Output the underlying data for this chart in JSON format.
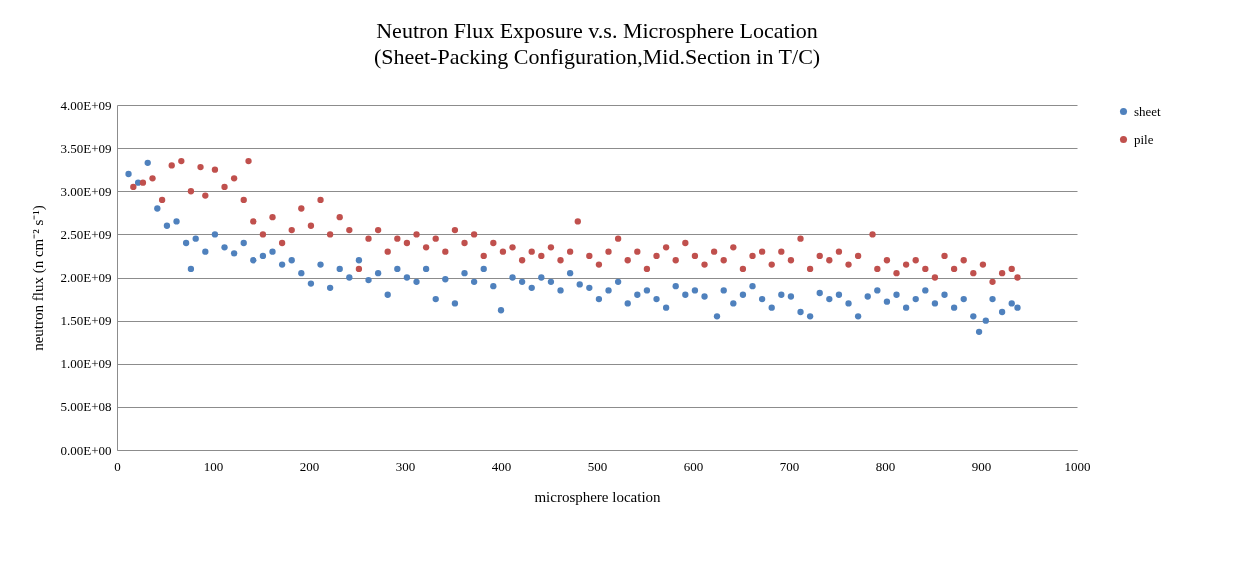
{
  "chart_data": {
    "type": "scatter",
    "title": "Neutron Flux Exposure v.s. Microsphere Location",
    "subtitle": "(Sheet-Packing Configuration,Mid.Section in T/C)",
    "xlabel": "microsphere location",
    "ylabel": "neutron flux (n cm⁻² s⁻¹)",
    "xlim": [
      0,
      1000
    ],
    "xticks": [
      0,
      100,
      200,
      300,
      400,
      500,
      600,
      700,
      800,
      900,
      1000
    ],
    "ylim": [
      0,
      4000000000.0
    ],
    "yticks": [
      {
        "value": 0,
        "label": "0.00E+00"
      },
      {
        "value": 500000000.0,
        "label": "5.00E+08"
      },
      {
        "value": 1000000000.0,
        "label": "1.00E+09"
      },
      {
        "value": 1500000000.0,
        "label": "1.50E+09"
      },
      {
        "value": 2000000000.0,
        "label": "2.00E+09"
      },
      {
        "value": 2500000000.0,
        "label": "2.50E+09"
      },
      {
        "value": 3000000000.0,
        "label": "3.00E+09"
      },
      {
        "value": 3500000000.0,
        "label": "3.50E+09"
      },
      {
        "value": 4000000000.0,
        "label": "4.00E+09"
      }
    ],
    "grid": "y",
    "legend": "right",
    "marker": "circle",
    "series": [
      {
        "name": "sheet",
        "color": "#4f81bd",
        "x": [
          12,
          22,
          32,
          42,
          52,
          62,
          72,
          77,
          82,
          92,
          102,
          112,
          122,
          132,
          142,
          152,
          162,
          172,
          182,
          192,
          202,
          212,
          222,
          232,
          242,
          252,
          262,
          272,
          282,
          292,
          302,
          312,
          322,
          332,
          342,
          352,
          362,
          372,
          382,
          392,
          400,
          412,
          422,
          432,
          442,
          452,
          462,
          472,
          482,
          492,
          502,
          512,
          522,
          532,
          542,
          552,
          562,
          572,
          582,
          592,
          602,
          612,
          625,
          632,
          642,
          652,
          662,
          672,
          682,
          692,
          702,
          712,
          722,
          732,
          742,
          752,
          762,
          772,
          782,
          792,
          802,
          812,
          822,
          832,
          842,
          852,
          862,
          872,
          882,
          892,
          898,
          905,
          912,
          922,
          932,
          938
        ],
        "values": [
          3200000000.0,
          3100000000.0,
          3330000000.0,
          2800000000.0,
          2600000000.0,
          2650000000.0,
          2400000000.0,
          2100000000.0,
          2450000000.0,
          2300000000.0,
          2500000000.0,
          2350000000.0,
          2280000000.0,
          2400000000.0,
          2200000000.0,
          2250000000.0,
          2300000000.0,
          2150000000.0,
          2200000000.0,
          2050000000.0,
          1930000000.0,
          2150000000.0,
          1880000000.0,
          2100000000.0,
          2000000000.0,
          2200000000.0,
          1970000000.0,
          2050000000.0,
          1800000000.0,
          2100000000.0,
          2000000000.0,
          1950000000.0,
          2100000000.0,
          1750000000.0,
          1980000000.0,
          1700000000.0,
          2050000000.0,
          1950000000.0,
          2100000000.0,
          1900000000.0,
          1620000000.0,
          2000000000.0,
          1950000000.0,
          1880000000.0,
          2000000000.0,
          1950000000.0,
          1850000000.0,
          2050000000.0,
          1920000000.0,
          1880000000.0,
          1750000000.0,
          1850000000.0,
          1950000000.0,
          1700000000.0,
          1800000000.0,
          1850000000.0,
          1750000000.0,
          1650000000.0,
          1900000000.0,
          1800000000.0,
          1850000000.0,
          1780000000.0,
          1550000000.0,
          1850000000.0,
          1700000000.0,
          1800000000.0,
          1900000000.0,
          1750000000.0,
          1650000000.0,
          1800000000.0,
          1780000000.0,
          1600000000.0,
          1550000000.0,
          1820000000.0,
          1750000000.0,
          1800000000.0,
          1700000000.0,
          1550000000.0,
          1780000000.0,
          1850000000.0,
          1720000000.0,
          1800000000.0,
          1650000000.0,
          1750000000.0,
          1850000000.0,
          1700000000.0,
          1800000000.0,
          1650000000.0,
          1750000000.0,
          1550000000.0,
          1370000000.0,
          1500000000.0,
          1750000000.0,
          1600000000.0,
          1700000000.0,
          1650000000.0
        ]
      },
      {
        "name": "pile",
        "color": "#c0504d",
        "x": [
          17,
          27,
          37,
          47,
          57,
          67,
          77,
          87,
          92,
          102,
          112,
          122,
          132,
          137,
          142,
          152,
          162,
          172,
          182,
          192,
          202,
          212,
          222,
          232,
          242,
          252,
          262,
          272,
          282,
          292,
          302,
          312,
          322,
          332,
          342,
          352,
          362,
          372,
          382,
          392,
          402,
          412,
          422,
          432,
          442,
          452,
          462,
          472,
          480,
          492,
          502,
          512,
          522,
          532,
          542,
          552,
          562,
          572,
          582,
          592,
          602,
          612,
          622,
          632,
          642,
          652,
          662,
          672,
          682,
          692,
          702,
          712,
          722,
          732,
          742,
          752,
          762,
          772,
          787,
          792,
          802,
          812,
          822,
          832,
          842,
          852,
          862,
          872,
          882,
          892,
          902,
          912,
          922,
          932,
          938
        ],
        "values": [
          3050000000.0,
          3100000000.0,
          3150000000.0,
          2900000000.0,
          3300000000.0,
          3350000000.0,
          3000000000.0,
          3280000000.0,
          2950000000.0,
          3250000000.0,
          3050000000.0,
          3150000000.0,
          2900000000.0,
          3350000000.0,
          2650000000.0,
          2500000000.0,
          2700000000.0,
          2400000000.0,
          2550000000.0,
          2800000000.0,
          2600000000.0,
          2900000000.0,
          2500000000.0,
          2700000000.0,
          2550000000.0,
          2100000000.0,
          2450000000.0,
          2550000000.0,
          2300000000.0,
          2450000000.0,
          2400000000.0,
          2500000000.0,
          2350000000.0,
          2450000000.0,
          2300000000.0,
          2550000000.0,
          2400000000.0,
          2500000000.0,
          2250000000.0,
          2400000000.0,
          2300000000.0,
          2350000000.0,
          2200000000.0,
          2300000000.0,
          2250000000.0,
          2350000000.0,
          2200000000.0,
          2300000000.0,
          2650000000.0,
          2250000000.0,
          2150000000.0,
          2300000000.0,
          2450000000.0,
          2200000000.0,
          2300000000.0,
          2100000000.0,
          2250000000.0,
          2350000000.0,
          2200000000.0,
          2400000000.0,
          2250000000.0,
          2150000000.0,
          2300000000.0,
          2200000000.0,
          2350000000.0,
          2100000000.0,
          2250000000.0,
          2300000000.0,
          2150000000.0,
          2300000000.0,
          2200000000.0,
          2450000000.0,
          2100000000.0,
          2250000000.0,
          2200000000.0,
          2300000000.0,
          2150000000.0,
          2250000000.0,
          2500000000.0,
          2100000000.0,
          2200000000.0,
          2050000000.0,
          2150000000.0,
          2200000000.0,
          2100000000.0,
          2000000000.0,
          2250000000.0,
          2100000000.0,
          2200000000.0,
          2050000000.0,
          2150000000.0,
          1950000000.0,
          2050000000.0,
          2100000000.0,
          2000000000.0
        ]
      }
    ]
  }
}
